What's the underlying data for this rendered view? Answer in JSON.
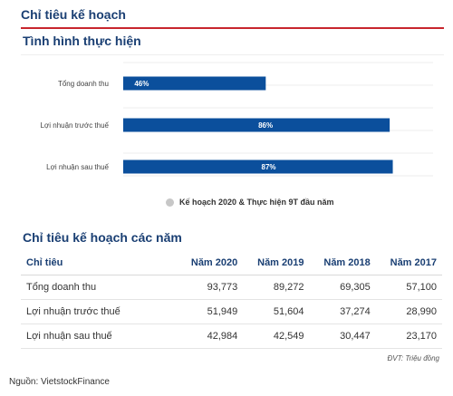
{
  "header": {
    "title": "Chỉ tiêu kế hoạch"
  },
  "chart_section": {
    "title": "Tình hình thực hiện"
  },
  "chart_data": {
    "type": "bar",
    "orientation": "horizontal",
    "categories": [
      "Tổng doanh thu",
      "Lợi nhuận trước thuế",
      "Lợi nhuận sau thuế"
    ],
    "series": [
      {
        "name": "Kế hoạch 2020 & Thực hiện 9T đầu năm",
        "values": [
          46,
          86,
          87
        ]
      }
    ],
    "value_labels": [
      "46%",
      "86%",
      "87%"
    ],
    "xlim": [
      0,
      100
    ],
    "unit": "%",
    "grid": true,
    "legend_position": "bottom",
    "colors": {
      "bar": "#0b4f9c",
      "legend_marker": "#c7c7c7",
      "grid": "#eeeeee"
    }
  },
  "legend": {
    "label": "Kế hoạch 2020 & Thực hiện 9T đầu năm"
  },
  "table": {
    "title": "Chỉ tiêu kế hoạch các năm",
    "headers": [
      "Chỉ tiêu",
      "Năm 2020",
      "Năm 2019",
      "Năm 2018",
      "Năm 2017"
    ],
    "rows": [
      [
        "Tổng doanh thu",
        "93,773",
        "89,272",
        "69,305",
        "57,100"
      ],
      [
        "Lợi nhuận trước thuế",
        "51,949",
        "51,604",
        "37,274",
        "28,990"
      ],
      [
        "Lợi nhuận sau thuế",
        "42,984",
        "42,549",
        "30,447",
        "23,170"
      ]
    ],
    "unit_note": "ĐVT: Triệu đồng"
  },
  "source": "Nguồn: VietstockFinance",
  "colors": {
    "title": "#1a3f73",
    "header_rule": "#c8262d"
  }
}
